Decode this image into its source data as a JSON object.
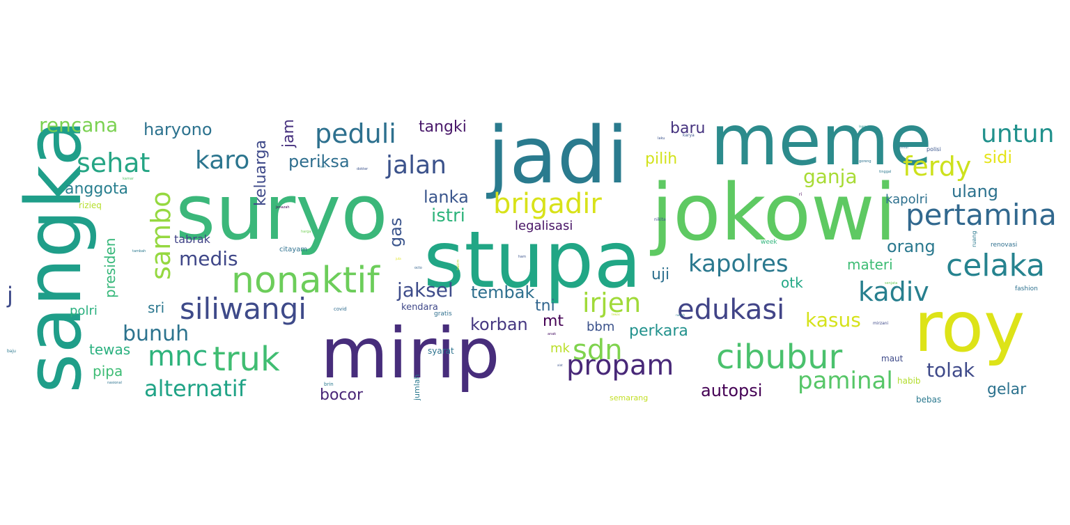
{
  "words": [
    {
      "text": "meme",
      "color": "#2c8b8c"
    },
    {
      "text": "jadi",
      "color": "#2a7b8e"
    },
    {
      "text": "suryo",
      "color": "#3bb77a"
    },
    {
      "text": "stupa",
      "color": "#21a685"
    },
    {
      "text": "jokowi",
      "color": "#5ec962"
    },
    {
      "text": "sangka",
      "color": "#1f9e89"
    },
    {
      "text": "mirip",
      "color": "#472d7b"
    },
    {
      "text": "roy",
      "color": "#dde318"
    },
    {
      "text": "nonaktif",
      "color": "#6ccd5a"
    },
    {
      "text": "siliwangi",
      "color": "#3e4a89"
    },
    {
      "text": "edukasi",
      "color": "#414487"
    },
    {
      "text": "celaka",
      "color": "#26838f"
    },
    {
      "text": "pertamina",
      "color": "#31688e"
    },
    {
      "text": "brigadir",
      "color": "#d8e219"
    },
    {
      "text": "cibubur",
      "color": "#4ac16d"
    },
    {
      "text": "propam",
      "color": "#482878"
    },
    {
      "text": "kapolres",
      "color": "#2a788e"
    },
    {
      "text": "kadiv",
      "color": "#277f8e"
    },
    {
      "text": "untun",
      "color": "#21918c"
    },
    {
      "text": "peduli",
      "color": "#2d708e"
    },
    {
      "text": "jalan",
      "color": "#3b528b"
    },
    {
      "text": "sehat",
      "color": "#25a584"
    },
    {
      "text": "karo",
      "color": "#2b758e"
    },
    {
      "text": "ferdy",
      "color": "#cde11d"
    },
    {
      "text": "truk",
      "color": "#40bd72"
    },
    {
      "text": "irjen",
      "color": "#a0da39"
    },
    {
      "text": "paminal",
      "color": "#56c667"
    },
    {
      "text": "alternatif",
      "color": "#20a386"
    },
    {
      "text": "mnc",
      "color": "#2eb37c"
    },
    {
      "text": "sdn",
      "color": "#7fd34e"
    },
    {
      "text": "sambo",
      "color": "#95d840"
    },
    {
      "text": "rencana",
      "color": "#7ad151"
    },
    {
      "text": "jaksel",
      "color": "#3e4c8a"
    },
    {
      "text": "tembak",
      "color": "#2e6f8e"
    },
    {
      "text": "haryono",
      "color": "#2c728e"
    },
    {
      "text": "tangki",
      "color": "#481769"
    },
    {
      "text": "periksa",
      "color": "#2e6e8e"
    },
    {
      "text": "keluarga",
      "color": "#3e4989"
    },
    {
      "text": "jam",
      "color": "#46307e"
    },
    {
      "text": "anggota",
      "color": "#277e8e"
    },
    {
      "text": "medis",
      "color": "#3f4788"
    },
    {
      "text": "bunuh",
      "color": "#2c738e"
    },
    {
      "text": "lanka",
      "color": "#39558c"
    },
    {
      "text": "istri",
      "color": "#2fb47c"
    },
    {
      "text": "legalisasi",
      "color": "#471365"
    },
    {
      "text": "gas",
      "color": "#3a548c"
    },
    {
      "text": "korban",
      "color": "#453781"
    },
    {
      "text": "tni",
      "color": "#31668e"
    },
    {
      "text": "mt",
      "color": "#440154"
    },
    {
      "text": "ganja",
      "color": "#a8db34"
    },
    {
      "text": "pilih",
      "color": "#d2e21b"
    },
    {
      "text": "baru",
      "color": "#46337f"
    },
    {
      "text": "sidi",
      "color": "#e5e419"
    },
    {
      "text": "ulang",
      "color": "#2c728e"
    },
    {
      "text": "kapolri",
      "color": "#2d708e"
    },
    {
      "text": "orang",
      "color": "#2a788e"
    },
    {
      "text": "materi",
      "color": "#3dbc74"
    },
    {
      "text": "uji",
      "color": "#2d708e"
    },
    {
      "text": "otk",
      "color": "#22a785"
    },
    {
      "text": "kasus",
      "color": "#d5e21a"
    },
    {
      "text": "autopsi",
      "color": "#440154"
    },
    {
      "text": "tolak",
      "color": "#3e4989"
    },
    {
      "text": "gelar",
      "color": "#2c728e"
    },
    {
      "text": "perkara",
      "color": "#21918c"
    },
    {
      "text": "bbm",
      "color": "#3b528b"
    },
    {
      "text": "bocor",
      "color": "#482576"
    },
    {
      "text": "presiden",
      "color": "#35b779"
    },
    {
      "text": "sri",
      "color": "#2a768e"
    },
    {
      "text": "polri",
      "color": "#2ab07f"
    },
    {
      "text": "tewas",
      "color": "#2ab07f"
    },
    {
      "text": "pipa",
      "color": "#3dbc74"
    },
    {
      "text": "tabrak",
      "color": "#414487"
    },
    {
      "text": "rizieq",
      "color": "#b5de2b"
    },
    {
      "text": "j",
      "color": "#3e4a89"
    },
    {
      "text": "mk",
      "color": "#bade28"
    },
    {
      "text": "kendara",
      "color": "#3f4889"
    },
    {
      "text": "gratis",
      "color": "#2e6f8e"
    },
    {
      "text": "syarat",
      "color": "#2c728e"
    },
    {
      "text": "jumlah",
      "color": "#2a788e"
    },
    {
      "text": "brin",
      "color": "#2a788e"
    },
    {
      "text": "semarang",
      "color": "#c2df23"
    },
    {
      "text": "maut",
      "color": "#3e4a89"
    },
    {
      "text": "habib",
      "color": "#b2dd2d"
    },
    {
      "text": "bebas",
      "color": "#2a788e"
    },
    {
      "text": "week",
      "color": "#30b57b"
    },
    {
      "text": "renovasi",
      "color": "#2e6f8e"
    },
    {
      "text": "fashion",
      "color": "#2d718e"
    },
    {
      "text": "citayam",
      "color": "#2d708e"
    },
    {
      "text": "covid",
      "color": "#2f6c8e"
    },
    {
      "text": "polisi",
      "color": "#39558c"
    },
    {
      "text": "mirzani",
      "color": "#3e4989"
    },
    {
      "text": "nikita",
      "color": "#3b528b"
    },
    {
      "text": "ruang",
      "color": "#2a788e"
    },
    {
      "text": "ri",
      "color": "#440154"
    },
    {
      "text": "ham",
      "color": "#3b528b"
    },
    {
      "text": "anak",
      "color": "#471063"
    },
    {
      "text": "octo",
      "color": "#33628d"
    },
    {
      "text": "hari",
      "color": "#2c738e"
    },
    {
      "text": "dokter",
      "color": "#3b528b"
    },
    {
      "text": "nasional",
      "color": "#2c728e"
    },
    {
      "text": "tambah",
      "color": "#2a788e"
    },
    {
      "text": "harga",
      "color": "#73d056"
    },
    {
      "text": "kamar",
      "color": "#56c667"
    },
    {
      "text": "jenazah",
      "color": "#440154"
    },
    {
      "text": "karya",
      "color": "#3b528b"
    },
    {
      "text": "laku",
      "color": "#3b528b"
    },
    {
      "text": "goreng",
      "color": "#2c728e"
    },
    {
      "text": "timur",
      "color": "#2c728e"
    },
    {
      "text": "tinggal",
      "color": "#2a788e"
    },
    {
      "text": "rumah",
      "color": "#2a788e"
    },
    {
      "text": "senjata",
      "color": "#6ccd5a"
    },
    {
      "text": "tewas",
      "color": "#bddf26"
    },
    {
      "text": "alat",
      "color": "#3b528b"
    },
    {
      "text": "lapor",
      "color": "#21918c"
    },
    {
      "text": "hakim",
      "color": "#bade28"
    },
    {
      "text": "juta",
      "color": "#dde318"
    },
    {
      "text": "baju",
      "color": "#2a788e"
    }
  ]
}
